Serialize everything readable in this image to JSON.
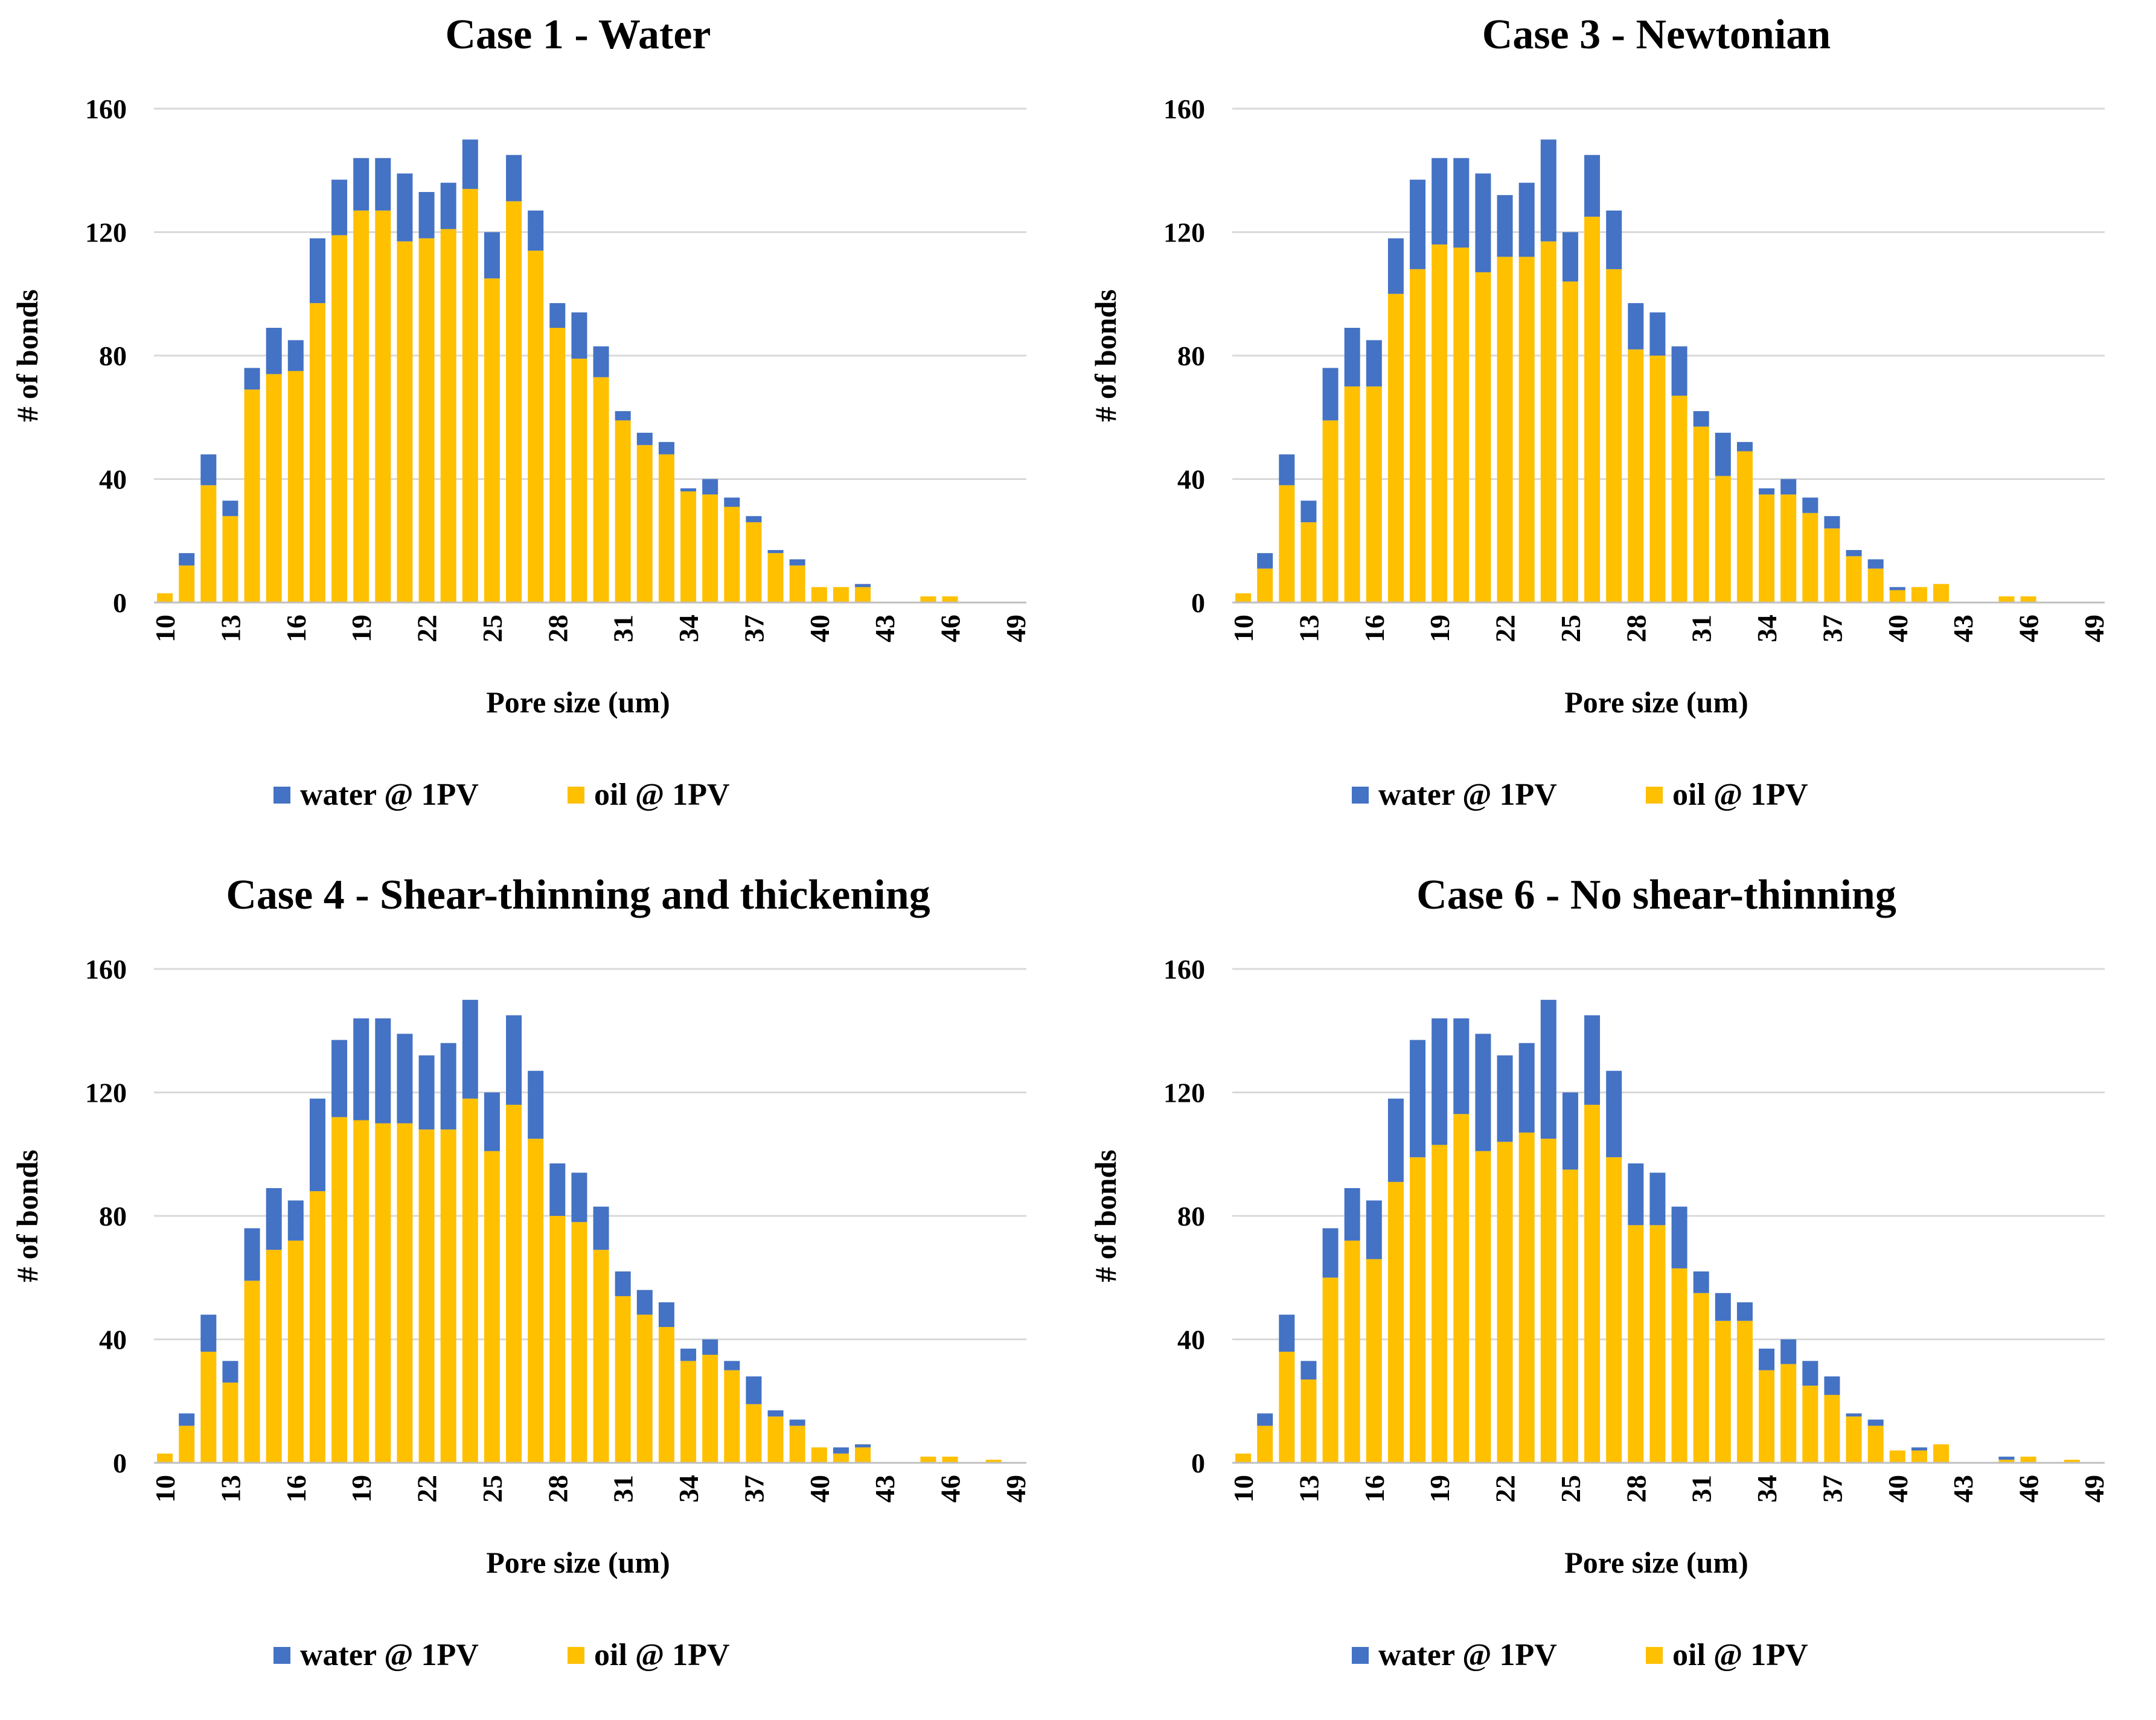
{
  "colors": {
    "water": "#4472C4",
    "oil": "#FFC000",
    "grid": "#d9d9d9"
  },
  "chart_data": [
    {
      "type": "bar",
      "stacked": true,
      "title": "Case 1 - Water",
      "xlabel": "Pore size (um)",
      "ylabel": "# of bonds",
      "ylim": [
        0,
        160
      ],
      "yticks": [
        0,
        40,
        80,
        120,
        160
      ],
      "categories": [
        10,
        11,
        12,
        13,
        14,
        15,
        16,
        17,
        18,
        19,
        20,
        21,
        22,
        23,
        24,
        25,
        26,
        27,
        28,
        29,
        30,
        31,
        32,
        33,
        34,
        35,
        36,
        37,
        38,
        39,
        40,
        41,
        42,
        43,
        44,
        45,
        46,
        47,
        48,
        49
      ],
      "x_tick_labels": [
        "10",
        "13",
        "16",
        "19",
        "22",
        "25",
        "28",
        "31",
        "34",
        "37",
        "40",
        "43",
        "46",
        "49"
      ],
      "legend": [
        "water @ 1PV",
        "oil @ 1PV"
      ],
      "series": [
        {
          "name": "oil @ 1PV",
          "values": [
            3,
            12,
            38,
            28,
            69,
            74,
            75,
            97,
            119,
            127,
            127,
            117,
            118,
            121,
            134,
            105,
            130,
            114,
            89,
            79,
            73,
            59,
            51,
            48,
            36,
            35,
            31,
            26,
            16,
            12,
            5,
            5,
            5,
            0,
            0,
            2,
            2,
            0,
            0,
            0
          ]
        },
        {
          "name": "water @ 1PV",
          "values": [
            0,
            4,
            10,
            5,
            7,
            15,
            10,
            21,
            18,
            17,
            17,
            22,
            15,
            15,
            16,
            15,
            15,
            13,
            8,
            15,
            10,
            3,
            4,
            4,
            1,
            5,
            3,
            2,
            1,
            2,
            0,
            0,
            1,
            0,
            0,
            0,
            0,
            0,
            0,
            0
          ]
        }
      ]
    },
    {
      "type": "bar",
      "stacked": true,
      "title": "Case 3 - Newtonian",
      "xlabel": "Pore size (um)",
      "ylabel": "# of bonds",
      "ylim": [
        0,
        160
      ],
      "yticks": [
        0,
        40,
        80,
        120,
        160
      ],
      "categories": [
        10,
        11,
        12,
        13,
        14,
        15,
        16,
        17,
        18,
        19,
        20,
        21,
        22,
        23,
        24,
        25,
        26,
        27,
        28,
        29,
        30,
        31,
        32,
        33,
        34,
        35,
        36,
        37,
        38,
        39,
        40,
        41,
        42,
        43,
        44,
        45,
        46,
        47,
        48,
        49
      ],
      "x_tick_labels": [
        "10",
        "13",
        "16",
        "19",
        "22",
        "25",
        "28",
        "31",
        "34",
        "37",
        "40",
        "43",
        "46",
        "49"
      ],
      "legend": [
        "water @ 1PV",
        "oil @ 1PV"
      ],
      "series": [
        {
          "name": "oil @ 1PV",
          "values": [
            3,
            11,
            38,
            26,
            59,
            70,
            70,
            100,
            108,
            116,
            115,
            107,
            112,
            112,
            117,
            104,
            125,
            108,
            82,
            80,
            67,
            57,
            41,
            49,
            35,
            35,
            29,
            24,
            15,
            11,
            4,
            5,
            6,
            0,
            0,
            2,
            2,
            0,
            0,
            0
          ]
        },
        {
          "name": "water @ 1PV",
          "values": [
            0,
            5,
            10,
            7,
            17,
            19,
            15,
            18,
            29,
            28,
            29,
            32,
            20,
            24,
            33,
            16,
            20,
            19,
            15,
            14,
            16,
            5,
            14,
            3,
            2,
            5,
            5,
            4,
            2,
            3,
            1,
            0,
            0,
            0,
            0,
            0,
            0,
            0,
            0,
            0
          ]
        }
      ]
    },
    {
      "type": "bar",
      "stacked": true,
      "title": "Case 4 - Shear-thinning and thickening",
      "xlabel": "Pore size (um)",
      "ylabel": "# of bonds",
      "ylim": [
        0,
        160
      ],
      "yticks": [
        0,
        40,
        80,
        120,
        160
      ],
      "categories": [
        10,
        11,
        12,
        13,
        14,
        15,
        16,
        17,
        18,
        19,
        20,
        21,
        22,
        23,
        24,
        25,
        26,
        27,
        28,
        29,
        30,
        31,
        32,
        33,
        34,
        35,
        36,
        37,
        38,
        39,
        40,
        41,
        42,
        43,
        44,
        45,
        46,
        47,
        48,
        49
      ],
      "x_tick_labels": [
        "10",
        "13",
        "16",
        "19",
        "22",
        "25",
        "28",
        "31",
        "34",
        "37",
        "40",
        "43",
        "46",
        "49"
      ],
      "legend": [
        "water @ 1PV",
        "oil @ 1PV"
      ],
      "series": [
        {
          "name": "oil @ 1PV",
          "values": [
            3,
            12,
            36,
            26,
            59,
            69,
            72,
            88,
            112,
            111,
            110,
            110,
            108,
            108,
            118,
            101,
            116,
            105,
            80,
            78,
            69,
            54,
            48,
            44,
            33,
            35,
            30,
            19,
            15,
            12,
            5,
            3,
            5,
            0,
            0,
            2,
            2,
            0,
            1,
            0
          ]
        },
        {
          "name": "water @ 1PV",
          "values": [
            0,
            4,
            12,
            7,
            17,
            20,
            13,
            30,
            25,
            33,
            34,
            29,
            24,
            28,
            32,
            19,
            29,
            22,
            17,
            16,
            14,
            8,
            8,
            8,
            4,
            5,
            3,
            9,
            2,
            2,
            0,
            2,
            1,
            0,
            0,
            0,
            0,
            0,
            0,
            0
          ]
        }
      ]
    },
    {
      "type": "bar",
      "stacked": true,
      "title": "Case 6 - No shear-thinning",
      "xlabel": "Pore size (um)",
      "ylabel": "# of bonds",
      "ylim": [
        0,
        160
      ],
      "yticks": [
        0,
        40,
        80,
        120,
        160
      ],
      "categories": [
        10,
        11,
        12,
        13,
        14,
        15,
        16,
        17,
        18,
        19,
        20,
        21,
        22,
        23,
        24,
        25,
        26,
        27,
        28,
        29,
        30,
        31,
        32,
        33,
        34,
        35,
        36,
        37,
        38,
        39,
        40,
        41,
        42,
        43,
        44,
        45,
        46,
        47,
        48,
        49
      ],
      "x_tick_labels": [
        "10",
        "13",
        "16",
        "19",
        "22",
        "25",
        "28",
        "31",
        "34",
        "37",
        "40",
        "43",
        "46",
        "49"
      ],
      "legend": [
        "water @ 1PV",
        "oil @ 1PV"
      ],
      "series": [
        {
          "name": "oil @ 1PV",
          "values": [
            3,
            12,
            36,
            27,
            60,
            72,
            66,
            91,
            99,
            103,
            113,
            101,
            104,
            107,
            105,
            95,
            116,
            99,
            77,
            77,
            63,
            55,
            46,
            46,
            30,
            32,
            25,
            22,
            15,
            12,
            4,
            4,
            6,
            0,
            0,
            1,
            2,
            0,
            1,
            0
          ]
        },
        {
          "name": "water @ 1PV",
          "values": [
            0,
            4,
            12,
            6,
            16,
            17,
            19,
            27,
            38,
            41,
            31,
            38,
            28,
            29,
            45,
            25,
            29,
            28,
            20,
            17,
            20,
            7,
            9,
            6,
            7,
            8,
            8,
            6,
            1,
            2,
            0,
            1,
            0,
            0,
            0,
            1,
            0,
            0,
            0,
            0
          ]
        }
      ]
    }
  ]
}
